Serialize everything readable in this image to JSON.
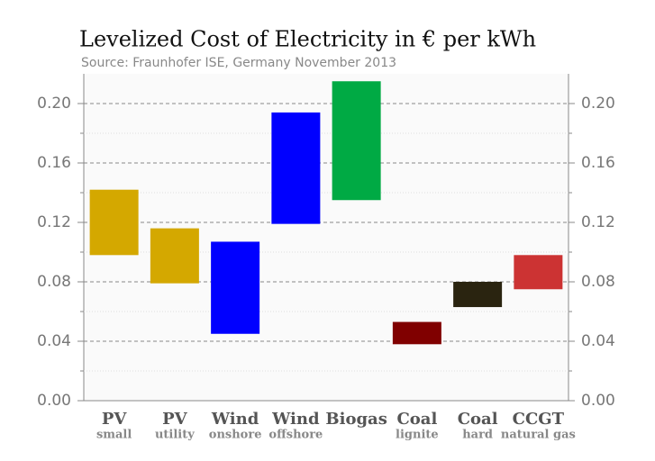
{
  "chart_data": {
    "type": "range-bar",
    "title": "Levelized Cost of Electricity in € per kWh",
    "subtitle": "Source: Fraunhofer ISE, Germany November 2013",
    "categories": [
      "PV",
      "PV",
      "Wind",
      "Wind",
      "Biogas",
      "Coal",
      "Coal",
      "CCGT"
    ],
    "subcategories": [
      "small",
      "utility",
      "onshore",
      "offshore",
      null,
      "lignite",
      "hard",
      "natural gas"
    ],
    "series": [
      {
        "low": [
          0.098,
          0.079,
          0.045,
          0.119,
          0.135,
          0.038,
          0.063,
          0.075
        ],
        "high": [
          0.142,
          0.116,
          0.107,
          0.194,
          0.215,
          0.053,
          0.08,
          0.098
        ],
        "colors": [
          "#d4a800",
          "#d4a800",
          "#0000ff",
          "#0000ff",
          "#00aa44",
          "#800000",
          "#2a2410",
          "#cc3333"
        ]
      }
    ],
    "ylim": [
      0,
      0.22
    ],
    "yticks": [
      {
        "value": 0,
        "label": "0.00"
      },
      {
        "value": 0.04,
        "label": "0.04"
      },
      {
        "value": 0.08,
        "label": "0.08"
      },
      {
        "value": 0.12,
        "label": "0.12"
      },
      {
        "value": 0.16,
        "label": "0.16"
      },
      {
        "value": 0.2,
        "label": "0.20"
      }
    ],
    "minor_yticks": [
      0.02,
      0.06,
      0.1,
      0.14,
      0.18
    ],
    "grid": true
  }
}
